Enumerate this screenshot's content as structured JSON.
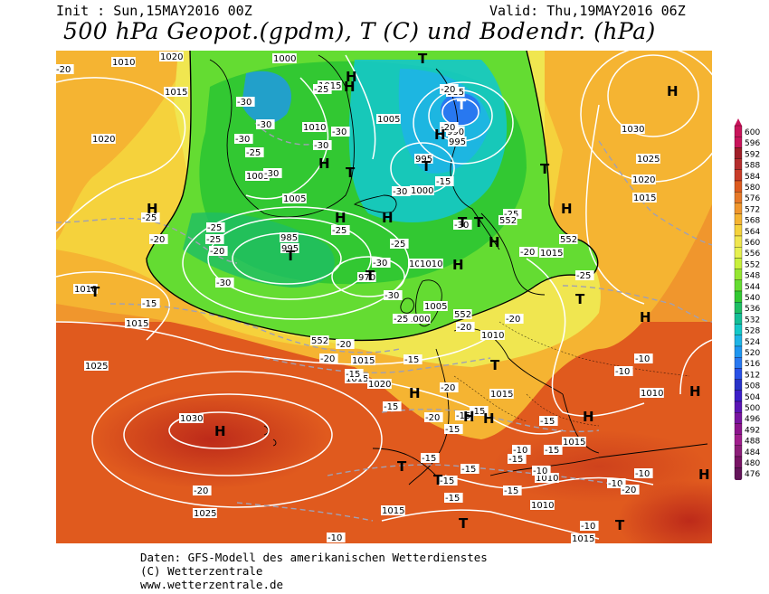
{
  "header": {
    "init": "Init : Sun,15MAY2016 00Z",
    "valid": "Valid: Thu,19MAY2016 06Z",
    "title": "500 hPa Geopot.(gpdm), T (C) und Bodendr. (hPa)"
  },
  "footer": {
    "line1": "Daten: GFS-Modell des amerikanischen Wetterdienstes",
    "line2": "(C) Wetterzentrale",
    "line3": "www.wetterzentrale.de"
  },
  "colorbar": {
    "levels": [
      "600",
      "596",
      "592",
      "588",
      "584",
      "580",
      "576",
      "572",
      "568",
      "564",
      "560",
      "556",
      "552",
      "548",
      "544",
      "540",
      "536",
      "532",
      "528",
      "524",
      "520",
      "516",
      "512",
      "508",
      "504",
      "500",
      "496",
      "492",
      "488",
      "484",
      "480",
      "476"
    ],
    "colors": [
      "#c8145a",
      "#c8145a",
      "#a01e28",
      "#b42d2d",
      "#c83c28",
      "#dc5a1e",
      "#e67828",
      "#f0962d",
      "#f5b432",
      "#f5d23c",
      "#f0e650",
      "#e6f050",
      "#c8f03c",
      "#96e632",
      "#64dc32",
      "#32c832",
      "#1ebe64",
      "#14be96",
      "#14c8c8",
      "#1eb4e6",
      "#1e96f0",
      "#2878f0",
      "#2850e6",
      "#2832c8",
      "#3c1ec8",
      "#5a14b4",
      "#7814a0",
      "#8c148c",
      "#a01e8c",
      "#8c1e78",
      "#781464",
      "#64145a"
    ]
  },
  "pressure_labels": [
    "1010",
    "1020",
    "1015",
    "1020",
    "1000",
    "1015",
    "1010",
    "1005",
    "985",
    "990",
    "995",
    "995",
    "1000",
    "1030",
    "1025",
    "1020",
    "1015",
    "1005",
    "1005",
    "995",
    "985",
    "970",
    "1005",
    "1000",
    "1005",
    "1015",
    "1015",
    "1015",
    "1010",
    "1025",
    "1015",
    "1020",
    "1010",
    "1015",
    "1030",
    "1015",
    "1010",
    "1025",
    "1015",
    "1010",
    "1015",
    "1010",
    "1010"
  ],
  "temp_labels": [
    "-20",
    "-30",
    "-30",
    "-30",
    "-25",
    "-25",
    "-30",
    "-30",
    "-30",
    "-20",
    "-20",
    "-30",
    "-25",
    "-30",
    "-30",
    "-25",
    "-25",
    "-25",
    "-25",
    "-30",
    "-20",
    "-20",
    "-25",
    "-15",
    "-15",
    "-20",
    "-20",
    "-20",
    "-20",
    "-20",
    "-25",
    "-30",
    "-25",
    "-20",
    "-20",
    "-15",
    "-15",
    "-15",
    "-15",
    "-15",
    "-15",
    "-15",
    "-15",
    "-15",
    "-15",
    "-15",
    "-15",
    "-15",
    "-15",
    "-10",
    "-10",
    "-10",
    "-10",
    "-10",
    "-10",
    "-10",
    "-10",
    "-20",
    "-20"
  ],
  "contour_labels": [
    "552",
    "552",
    "552",
    "552"
  ],
  "high_low_marks": [
    "H",
    "H",
    "H",
    "H",
    "H",
    "H",
    "H",
    "H",
    "H",
    "H",
    "H",
    "H",
    "H",
    "H",
    "H",
    "H",
    "H",
    "H",
    "H",
    "T",
    "T",
    "T",
    "T",
    "T",
    "T",
    "T",
    "T",
    "T",
    "T",
    "T",
    "T",
    "T",
    "T",
    "T",
    "T"
  ]
}
